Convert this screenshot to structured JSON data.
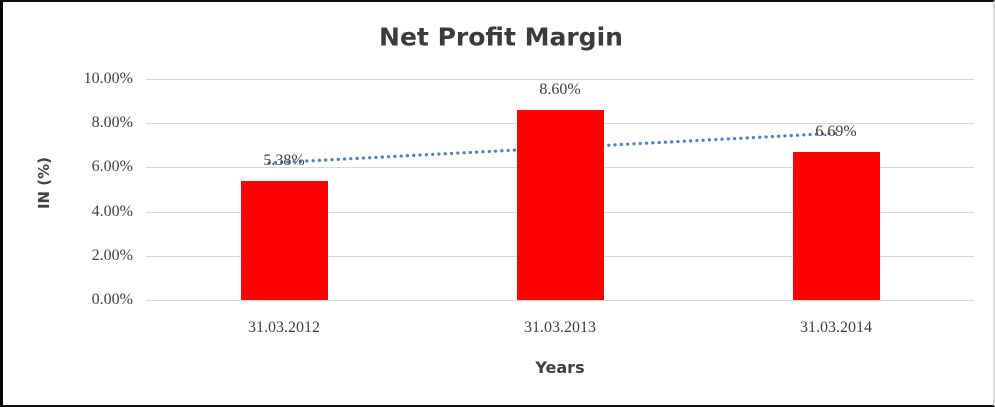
{
  "chart_data": {
    "type": "bar",
    "title": "Net Profit Margin",
    "xlabel": "Years",
    "ylabel": "IN (%)",
    "categories": [
      "31.03.2012",
      "31.03.2013",
      "31.03.2014"
    ],
    "values": [
      5.38,
      8.6,
      6.69
    ],
    "data_labels": [
      "5.38%",
      "8.60%",
      "6.69%"
    ],
    "yticks": [
      0,
      2,
      4,
      6,
      8,
      10
    ],
    "ytick_labels": [
      "0.00%",
      "2.00%",
      "4.00%",
      "6.00%",
      "8.00%",
      "10.00%"
    ],
    "ylim": [
      0,
      10
    ],
    "grid": true,
    "legend": false,
    "bar_color": "#ff0000",
    "gridline_color": "#d9d9d9",
    "text_color": "#3f3f3f",
    "trendline": {
      "type": "linear",
      "style": "dotted",
      "color": "#4f81bd"
    }
  }
}
